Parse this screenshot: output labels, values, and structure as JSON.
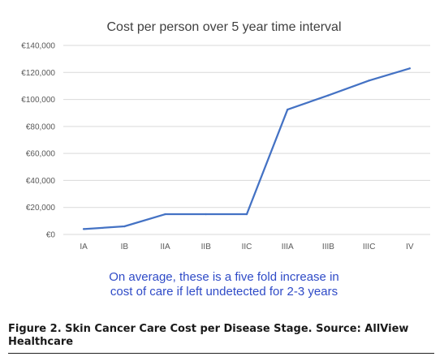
{
  "chart_data": {
    "type": "line",
    "title": "Cost per person over 5 year time interval",
    "categories": [
      "IA",
      "IB",
      "IIA",
      "IIB",
      "IIC",
      "IIIA",
      "IIIB",
      "IIIC",
      "IV"
    ],
    "series": [
      {
        "values": [
          4000,
          6000,
          15000,
          15000,
          15000,
          92500,
          103000,
          114000,
          123000
        ],
        "color": "#4472c4"
      }
    ],
    "ylim": [
      0,
      140000
    ],
    "yticks": [
      0,
      20000,
      40000,
      60000,
      80000,
      100000,
      120000,
      140000
    ],
    "ytick_labels": [
      "€0",
      "€20,000",
      "€40,000",
      "€60,000",
      "€80,000",
      "€100,000",
      "€120,000",
      "€140,000"
    ],
    "grid": true,
    "annotation": [
      "On average, these is a five fold increase in",
      "cost of care if left undetected for 2-3 years"
    ],
    "annotation_color": "#2f4bc7"
  },
  "caption": "Figure 2. Skin Cancer Care Cost per Disease Stage. Source: AllView Healthcare"
}
